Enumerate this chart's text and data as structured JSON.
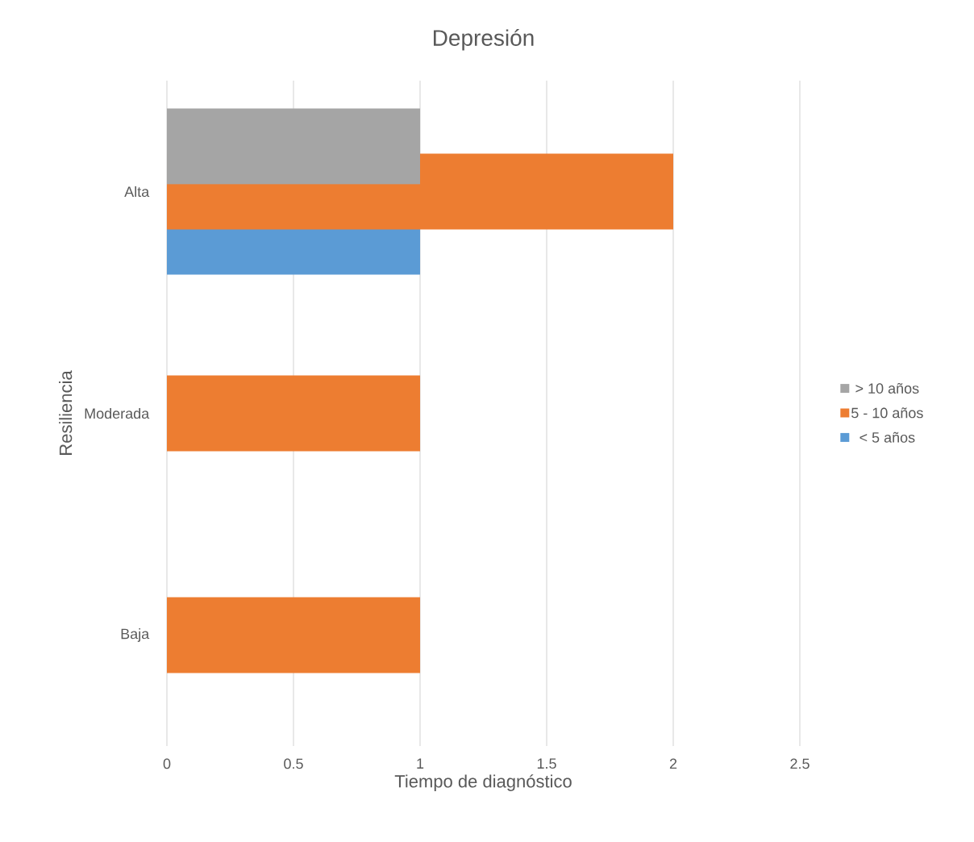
{
  "chart_data": {
    "type": "bar",
    "orientation": "horizontal",
    "title": "Depresión",
    "xlabel": "Tiempo de diagnóstico",
    "ylabel": "Resiliencia",
    "categories": [
      "Alta",
      "Moderada",
      "Baja"
    ],
    "series": [
      {
        "name": "< 5 años",
        "color": "#5b9bd5",
        "values": [
          1,
          null,
          null
        ]
      },
      {
        "name": "5 - 10 años",
        "color": "#ed7d31",
        "values": [
          2,
          1,
          1
        ]
      },
      {
        "name": "> 10 años",
        "color": "#a5a5a5",
        "values": [
          1,
          null,
          null
        ]
      }
    ],
    "xlim": [
      0,
      2.5
    ],
    "xticks": [
      0,
      0.5,
      1,
      1.5,
      2,
      2.5
    ],
    "grid": "x",
    "legend": "right"
  }
}
